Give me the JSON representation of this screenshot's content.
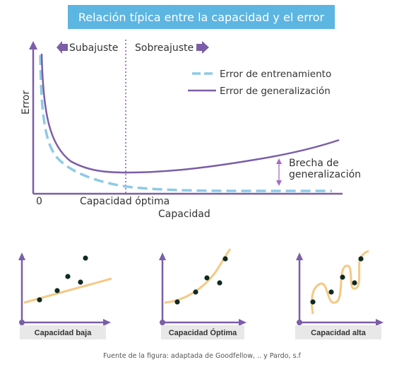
{
  "title": "Relación típica entre la capacidad y el error",
  "main_chart": {
    "y_axis_label": "Error",
    "x_axis_label": "Capacidad",
    "origin_label": "0",
    "optimal_label": "Capacidad óptima",
    "left_region_label": "Subajuste",
    "right_region_label": "Sobreajuste",
    "legend": {
      "training": "Error de entrenamiento",
      "generalization": "Error de generalización"
    },
    "gap_label_line1": "Brecha de",
    "gap_label_line2": "generalización",
    "colors": {
      "training": "#8ecae6",
      "generalization": "#7b5ea7",
      "axis": "#7b5ea7",
      "optimal_line": "#a36bc2"
    }
  },
  "mini_charts": [
    {
      "label": "Capacidad baja"
    },
    {
      "label": "Capacidad Óptima"
    },
    {
      "label": "Capacidad alta"
    }
  ],
  "mini_colors": {
    "axis": "#7b5ea7",
    "curve": "#f5c982",
    "point": "#0f2a22",
    "label_bg": "#e8e8e8"
  },
  "source": "Fuente de la figura: adaptada de Goodfellow, .. y Pardo, s.f"
}
